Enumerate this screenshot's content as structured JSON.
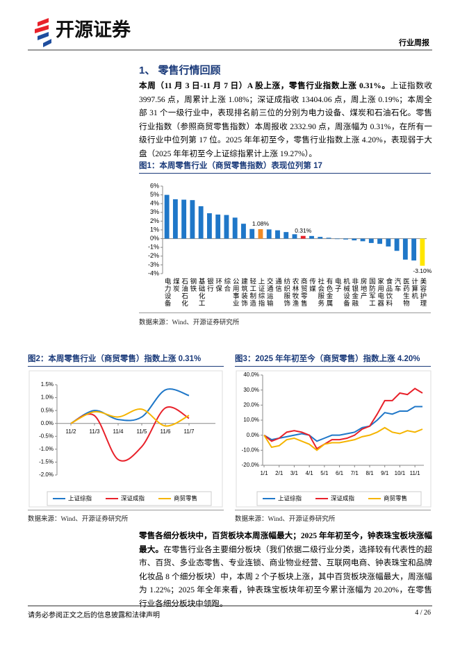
{
  "header": {
    "logo_text": "开源证券",
    "report_type": "行业周报"
  },
  "section_title": "1、 零售行情回顾",
  "paragraphs": [
    {
      "bold": "本周（11 月 3 日-11 月 7 日）A 股上涨，零售行业指数上涨 0.31%。",
      "text": "上证指数收 3997.56 点，周累计上涨 1.08%；深证成指收 13404.06 点，周上涨 0.19%；本周全部 31 个一级行业中，表现排名前三位的分别为电力设备、煤炭和石油石化。零售行业指数（参照商贸零售指数）本周报收 2332.90 点，周涨幅为 0.31%，在所有一级行业中位列第 17 位。2025 年年初至今，零售行业指数上涨 4.20%，表现弱于大盘（2025 年年初至今上证综指累计上涨 19.27%）。"
    },
    {
      "bold": "零售各细分板块中，百货板块本周涨幅最大；2025 年年初至今，钟表珠宝板块涨幅最大。",
      "text": "在零售行业各主要细分板块（我们依据二级行业分类，选择较有代表性的超市、百货、多业态零售、专业连锁、商业物业经营、互联网电商、钟表珠宝和品牌化妆品 8 个细分板块）中，本周 2 个子板块上涨，其中百货板块涨幅最大，周涨幅为 1.22%；2025 年全年来看，钟表珠宝板块年初至今累计涨幅为 20.20%，在零售行业各细分板块中领跑。"
    }
  ],
  "chart_data": [
    {
      "type": "bar",
      "title": "图1：本周零售行业（商贸零售指数）表现位列第 17",
      "source": "数据来源：Wind、开源证券研究所",
      "categories": [
        "电力设备",
        "煤炭",
        "石油石化",
        "钢铁",
        "基础化工",
        "银行",
        "环保",
        "综合",
        "公用事业",
        "建筑装饰",
        "轻工制造",
        "上证综指",
        "交通运输",
        "通信",
        "纺织服饰",
        "农林牧渔",
        "商贸零售",
        "传媒",
        "社会服务",
        "有色金属",
        "电子",
        "机械设备",
        "非银金融",
        "房地产",
        "国防军工",
        "家用电器",
        "食品饮料",
        "汽车",
        "医药生物",
        "计算机",
        "美容护理"
      ],
      "values": [
        5.0,
        4.5,
        4.45,
        4.4,
        3.7,
        2.9,
        2.75,
        2.7,
        2.4,
        1.7,
        1.1,
        1.08,
        1.05,
        0.95,
        0.75,
        0.5,
        0.31,
        0.3,
        0.2,
        0.1,
        -0.05,
        -0.1,
        -0.2,
        -0.3,
        -0.5,
        -0.6,
        -0.9,
        -1.4,
        -2.4,
        -2.5,
        -3.1
      ],
      "value_labels": [
        null,
        null,
        null,
        null,
        null,
        null,
        null,
        null,
        null,
        null,
        null,
        "1.08%",
        null,
        null,
        null,
        null,
        "0.31%",
        null,
        null,
        null,
        null,
        null,
        null,
        null,
        null,
        null,
        null,
        null,
        null,
        null,
        "-3.10%"
      ],
      "colors": [
        "#1f77c8",
        "#1f77c8",
        "#1f77c8",
        "#1f77c8",
        "#1f77c8",
        "#1f77c8",
        "#1f77c8",
        "#1f77c8",
        "#1f77c8",
        "#1f77c8",
        "#1f77c8",
        "#f08a24",
        "#1f77c8",
        "#1f77c8",
        "#1f77c8",
        "#1f77c8",
        "#e8212a",
        "#1f77c8",
        "#1f77c8",
        "#1f77c8",
        "#1f77c8",
        "#1f77c8",
        "#1f77c8",
        "#1f77c8",
        "#1f77c8",
        "#1f77c8",
        "#1f77c8",
        "#1f77c8",
        "#1f77c8",
        "#1f77c8",
        "#ffe600"
      ],
      "ylim": [
        -4,
        6
      ],
      "yticks": [
        {
          "value": 6,
          "label": "6%"
        },
        {
          "value": 5,
          "label": "5%"
        },
        {
          "value": 4,
          "label": "4%"
        },
        {
          "value": 3,
          "label": "3%"
        },
        {
          "value": 2,
          "label": "2%"
        },
        {
          "value": 1,
          "label": "1%"
        },
        {
          "value": 0,
          "label": "0%"
        },
        {
          "value": -1,
          "label": "-1%"
        },
        {
          "value": -2,
          "label": "-2%"
        },
        {
          "value": -3,
          "label": "-3%"
        },
        {
          "value": -4,
          "label": "-4%"
        }
      ]
    },
    {
      "type": "line",
      "title": "图2：本周零售行业（商贸零售）指数上涨 0.31%",
      "source": "数据来源：Wind、开源证券研究所",
      "smooth": true,
      "categories": [
        "11/2",
        "11/3",
        "11/4",
        "11/5",
        "11/6",
        "11/7"
      ],
      "series": [
        {
          "name": "上证综指",
          "color": "#1f77c8",
          "values": [
            0,
            0.5,
            0.15,
            0.25,
            1.3,
            1.08
          ]
        },
        {
          "name": "深证成指",
          "color": "#e8212a",
          "values": [
            0,
            0.3,
            -1.4,
            -0.9,
            0.6,
            0.2
          ]
        },
        {
          "name": "商贸零售",
          "color": "#f5b400",
          "values": [
            0,
            0.45,
            0.25,
            0.55,
            -0.1,
            0.31
          ]
        }
      ],
      "ylim": [
        -2,
        1.5
      ],
      "yticks": [
        {
          "value": 1.5,
          "label": "1.5%"
        },
        {
          "value": 1,
          "label": "1.0%"
        },
        {
          "value": 0.5,
          "label": "0.5%"
        },
        {
          "value": 0,
          "label": "0.0%"
        },
        {
          "value": -0.5,
          "label": "-0.5%"
        },
        {
          "value": -1,
          "label": "-1.0%"
        },
        {
          "value": -1.5,
          "label": "-1.5%"
        },
        {
          "value": -2,
          "label": "-2.0%"
        }
      ]
    },
    {
      "type": "line",
      "title": "图3：2025 年年初至今（商贸零售）指数上涨 4.20%",
      "source": "数据来源：Wind、开源证券研究所",
      "categories": [
        "1/1",
        null,
        "2/1",
        null,
        "3/1",
        null,
        "4/1",
        null,
        "5/1",
        null,
        "6/1",
        null,
        "7/1",
        null,
        "8/1",
        null,
        "9/1",
        null,
        "10/1",
        null,
        "11/1",
        null
      ],
      "series": [
        {
          "name": "上证综指",
          "color": "#1f77c8",
          "values": [
            0,
            -3,
            -2,
            -1,
            0,
            1,
            0,
            -4,
            -2,
            0,
            0,
            1,
            2,
            5,
            6,
            10,
            15,
            14,
            16,
            16,
            19,
            19
          ]
        },
        {
          "name": "深证成指",
          "color": "#e8212a",
          "values": [
            0,
            -4,
            -2,
            2,
            3,
            2,
            0,
            -9,
            -6,
            -3,
            -3,
            -2,
            0,
            4,
            6,
            14,
            23,
            23,
            28,
            27,
            31,
            28
          ]
        },
        {
          "name": "商贸零售",
          "color": "#f5b400",
          "values": [
            0,
            -8,
            -7,
            -3,
            -2,
            -4,
            -6,
            -10,
            -6,
            -5,
            -5,
            -4,
            -3,
            -1,
            0,
            2,
            5,
            2,
            1,
            3,
            2,
            4
          ]
        }
      ],
      "ylim": [
        -20,
        40
      ],
      "yticks": [
        {
          "value": 40,
          "label": "40.0%"
        },
        {
          "value": 30,
          "label": "30.0%"
        },
        {
          "value": 20,
          "label": "20.0%"
        },
        {
          "value": 10,
          "label": "10.0%"
        },
        {
          "value": 0,
          "label": "0.0%"
        },
        {
          "value": -10,
          "label": "-10.0%"
        },
        {
          "value": -20,
          "label": "-20.0%"
        }
      ]
    }
  ],
  "footer": {
    "disclaimer": "请务必参阅正文之后的信息披露和法律声明",
    "page": "4 / 26"
  }
}
